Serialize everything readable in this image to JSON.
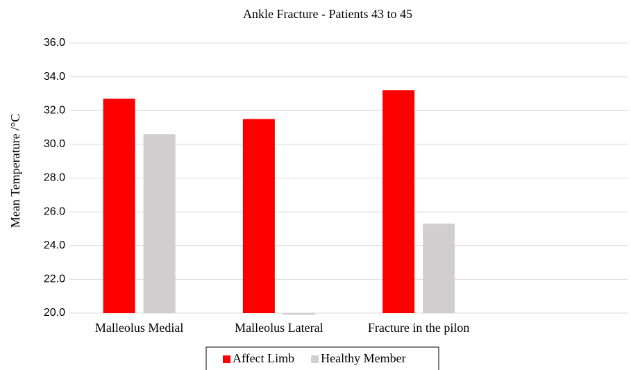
{
  "chart_data": {
    "type": "bar",
    "title": "Ankle Fracture - Patients 43 to 45",
    "y_label": "Mean Temperature /°C",
    "categories": [
      "Malleolus Medial",
      "Malleolus Lateral",
      "Fracture in the pilon",
      null
    ],
    "series": [
      {
        "name": "Affect Limb",
        "color": "#ff0000",
        "values": [
          32.7,
          31.5,
          33.2,
          null
        ]
      },
      {
        "name": "Healthy Member",
        "color": "#d0cece",
        "values": [
          30.6,
          19.9,
          25.3,
          null
        ]
      }
    ],
    "ylim": [
      20,
      36
    ],
    "yticks": [
      {
        "value": 20,
        "label": "20.0"
      },
      {
        "value": 22,
        "label": "22.0"
      },
      {
        "value": 24,
        "label": "24.0"
      },
      {
        "value": 26,
        "label": "26.0"
      },
      {
        "value": 28,
        "label": "28.0"
      },
      {
        "value": 30,
        "label": "30.0"
      },
      {
        "value": 32,
        "label": "32.0"
      },
      {
        "value": 34,
        "label": "34.0"
      },
      {
        "value": 36,
        "label": "36.0"
      }
    ],
    "grid": true,
    "legend": "bottom"
  }
}
